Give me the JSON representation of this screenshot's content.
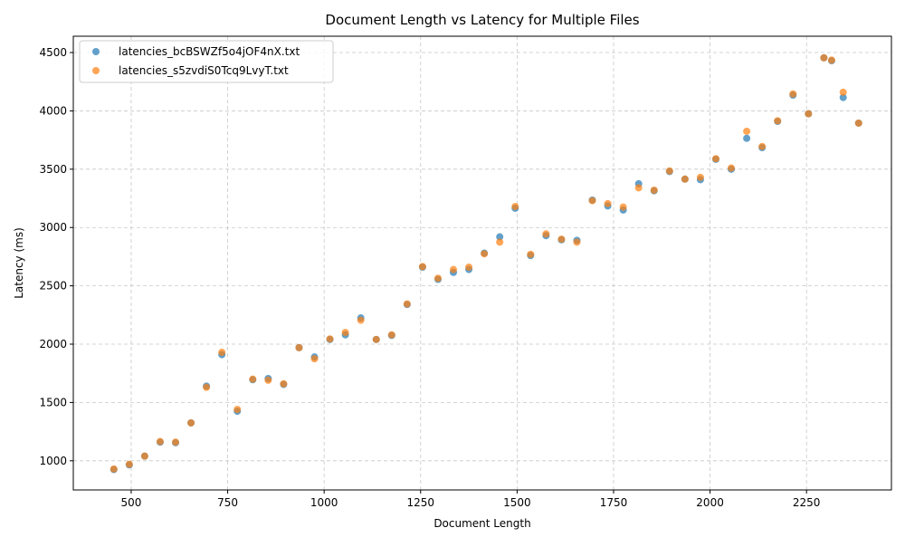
{
  "chart_data": {
    "type": "scatter",
    "title": "Document Length vs Latency for Multiple Files",
    "xlabel": "Document Length",
    "ylabel": "Latency (ms)",
    "xlim": [
      350,
      2470
    ],
    "ylim": [
      750,
      4640
    ],
    "xticks": [
      500,
      750,
      1000,
      1250,
      1500,
      1750,
      2000,
      2250
    ],
    "yticks": [
      1000,
      1500,
      2000,
      2500,
      3000,
      3500,
      4000,
      4500
    ],
    "grid": true,
    "legend_position": "top-left",
    "series": [
      {
        "name": "latencies_bcBSWZf5o4jOF4nX.txt",
        "color": "#1f77b4",
        "x": [
          455,
          495,
          535,
          575,
          615,
          655,
          695,
          735,
          775,
          815,
          855,
          895,
          935,
          975,
          1015,
          1055,
          1095,
          1135,
          1175,
          1215,
          1255,
          1295,
          1335,
          1375,
          1415,
          1455,
          1495,
          1535,
          1575,
          1615,
          1655,
          1695,
          1735,
          1775,
          1815,
          1855,
          1895,
          1935,
          1975,
          2015,
          2055,
          2095,
          2135,
          2175,
          2215,
          2255,
          2295,
          2315,
          2345,
          2385
        ],
        "y": [
          925,
          965,
          1040,
          1160,
          1155,
          1325,
          1640,
          1910,
          1425,
          1695,
          1705,
          1655,
          1970,
          1890,
          2040,
          2080,
          2225,
          2040,
          2075,
          2340,
          2660,
          2555,
          2615,
          2640,
          2780,
          2920,
          3165,
          2760,
          2930,
          2895,
          2890,
          3235,
          3185,
          3150,
          3375,
          3315,
          3480,
          3415,
          3410,
          3585,
          3500,
          3765,
          3685,
          3910,
          4135,
          3975,
          4455,
          4430,
          4115,
          3895
        ]
      },
      {
        "name": "latencies_s5zvdiS0Tcq9LvyT.txt",
        "color": "#ff7f0e",
        "x": [
          455,
          495,
          535,
          575,
          615,
          655,
          695,
          735,
          775,
          815,
          855,
          895,
          935,
          975,
          1015,
          1055,
          1095,
          1135,
          1175,
          1215,
          1255,
          1295,
          1335,
          1375,
          1415,
          1455,
          1495,
          1535,
          1575,
          1615,
          1655,
          1695,
          1735,
          1775,
          1815,
          1855,
          1895,
          1935,
          1975,
          2015,
          2055,
          2095,
          2135,
          2175,
          2215,
          2255,
          2295,
          2315,
          2345,
          2385
        ],
        "y": [
          930,
          970,
          1040,
          1165,
          1160,
          1325,
          1630,
          1930,
          1440,
          1700,
          1690,
          1660,
          1970,
          1875,
          2045,
          2100,
          2205,
          2040,
          2080,
          2345,
          2665,
          2565,
          2640,
          2660,
          2775,
          2875,
          3180,
          2770,
          2945,
          2900,
          2875,
          3230,
          3205,
          3175,
          3340,
          3320,
          3485,
          3415,
          3430,
          3590,
          3510,
          3825,
          3695,
          3915,
          4145,
          3975,
          4455,
          4435,
          4160,
          3895
        ]
      }
    ]
  }
}
